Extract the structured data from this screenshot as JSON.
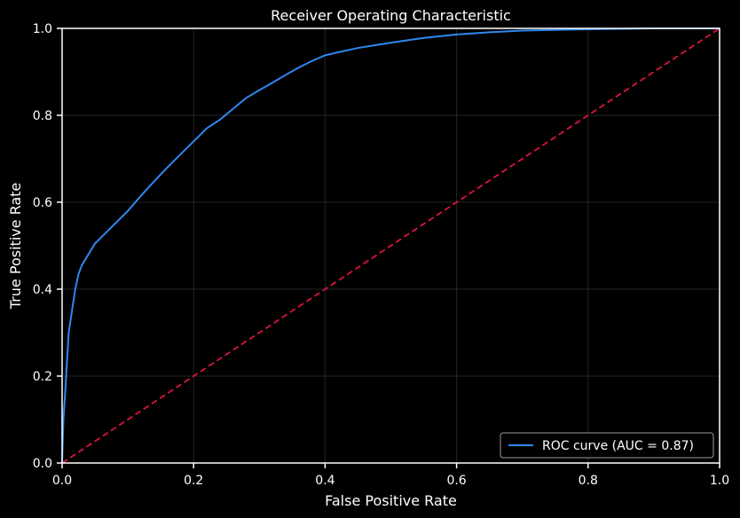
{
  "chart_data": {
    "type": "line",
    "title": "Receiver Operating Characteristic",
    "xlabel": "False Positive Rate",
    "ylabel": "True Positive Rate",
    "xlim": [
      0.0,
      1.0
    ],
    "ylim": [
      0.0,
      1.0
    ],
    "x_ticks": [
      "0.0",
      "0.2",
      "0.4",
      "0.6",
      "0.8",
      "1.0"
    ],
    "y_ticks": [
      "0.0",
      "0.2",
      "0.4",
      "0.6",
      "0.8",
      "1.0"
    ],
    "grid": true,
    "legend_position": "bottom-right",
    "series": [
      {
        "name": "ROC curve (AUC = 0.87)",
        "color": "#2e88f0",
        "style": "solid",
        "x": [
          0.0,
          0.002,
          0.005,
          0.008,
          0.01,
          0.015,
          0.02,
          0.025,
          0.03,
          0.04,
          0.05,
          0.06,
          0.07,
          0.08,
          0.09,
          0.1,
          0.12,
          0.14,
          0.16,
          0.18,
          0.2,
          0.22,
          0.24,
          0.26,
          0.28,
          0.3,
          0.32,
          0.34,
          0.36,
          0.38,
          0.4,
          0.42,
          0.45,
          0.5,
          0.55,
          0.6,
          0.65,
          0.7,
          0.8,
          0.9,
          1.0
        ],
        "y": [
          0.0,
          0.1,
          0.17,
          0.25,
          0.3,
          0.35,
          0.4,
          0.435,
          0.455,
          0.48,
          0.505,
          0.52,
          0.535,
          0.55,
          0.565,
          0.58,
          0.615,
          0.648,
          0.68,
          0.71,
          0.74,
          0.77,
          0.79,
          0.815,
          0.84,
          0.858,
          0.875,
          0.893,
          0.91,
          0.925,
          0.938,
          0.945,
          0.955,
          0.967,
          0.978,
          0.986,
          0.991,
          0.995,
          0.998,
          1.0,
          1.0
        ]
      },
      {
        "name": "",
        "color": "#dc143c",
        "style": "dashed",
        "x": [
          0.0,
          1.0
        ],
        "y": [
          0.0,
          1.0
        ]
      }
    ]
  }
}
